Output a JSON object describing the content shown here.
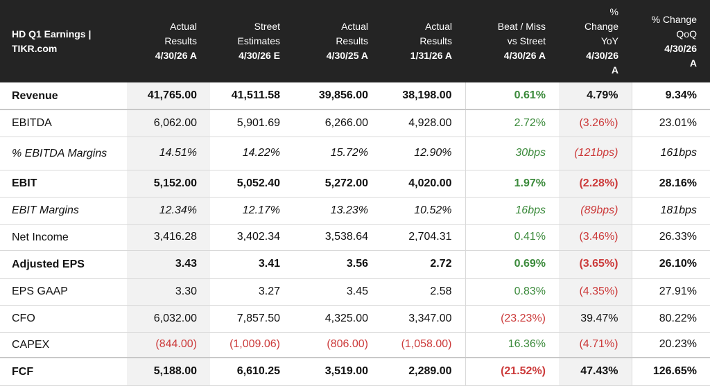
{
  "header": {
    "title_line1": "HD Q1 Earnings |",
    "title_line2": "TIKR.com",
    "columns": [
      {
        "lines": [
          "Actual",
          "Results"
        ],
        "date": "4/30/26 A"
      },
      {
        "lines": [
          "Street",
          "Estimates"
        ],
        "date": "4/30/26 E"
      },
      {
        "lines": [
          "Actual",
          "Results"
        ],
        "date": "4/30/25 A"
      },
      {
        "lines": [
          "Actual",
          "Results"
        ],
        "date": "1/31/26 A"
      },
      {
        "lines": [
          "Beat / Miss",
          "vs Street"
        ],
        "date": "4/30/26 A"
      },
      {
        "lines": [
          "%",
          "Change",
          "YoY"
        ],
        "date": "4/30/26",
        "date2": "A"
      },
      {
        "lines": [
          "% Change",
          "QoQ"
        ],
        "date": "4/30/26",
        "date2": "A"
      }
    ]
  },
  "rows": [
    {
      "label": "Revenue",
      "style": "bold",
      "values": [
        "41,765.00",
        "41,511.58",
        "39,856.00",
        "38,198.00",
        "0.61%",
        "4.79%",
        "9.34%"
      ],
      "tones": [
        "neu",
        "neu",
        "neu",
        "neu",
        "pos",
        "neu",
        "neu"
      ]
    },
    {
      "label": "EBITDA",
      "style": "normal",
      "values": [
        "6,062.00",
        "5,901.69",
        "6,266.00",
        "4,928.00",
        "2.72%",
        "(3.26%)",
        "23.01%"
      ],
      "tones": [
        "neu",
        "neu",
        "neu",
        "neu",
        "pos",
        "neg",
        "neu"
      ]
    },
    {
      "label": "% EBITDA Margins",
      "style": "ital",
      "values": [
        "14.51%",
        "14.22%",
        "15.72%",
        "12.90%",
        "30bps",
        "(121bps)",
        "161bps"
      ],
      "tones": [
        "neu",
        "neu",
        "neu",
        "neu",
        "pos",
        "neg",
        "neu"
      ]
    },
    {
      "label": "EBIT",
      "style": "bold",
      "values": [
        "5,152.00",
        "5,052.40",
        "5,272.00",
        "4,020.00",
        "1.97%",
        "(2.28%)",
        "28.16%"
      ],
      "tones": [
        "neu",
        "neu",
        "neu",
        "neu",
        "pos",
        "neg",
        "neu"
      ]
    },
    {
      "label": "EBIT Margins",
      "style": "ital",
      "values": [
        "12.34%",
        "12.17%",
        "13.23%",
        "10.52%",
        "16bps",
        "(89bps)",
        "181bps"
      ],
      "tones": [
        "neu",
        "neu",
        "neu",
        "neu",
        "pos",
        "neg",
        "neu"
      ]
    },
    {
      "label": "Net Income",
      "style": "normal",
      "values": [
        "3,416.28",
        "3,402.34",
        "3,538.64",
        "2,704.31",
        "0.41%",
        "(3.46%)",
        "26.33%"
      ],
      "tones": [
        "neu",
        "neu",
        "neu",
        "neu",
        "pos",
        "neg",
        "neu"
      ]
    },
    {
      "label": "Adjusted EPS",
      "style": "bold",
      "values": [
        "3.43",
        "3.41",
        "3.56",
        "2.72",
        "0.69%",
        "(3.65%)",
        "26.10%"
      ],
      "tones": [
        "neu",
        "neu",
        "neu",
        "neu",
        "pos",
        "neg",
        "neu"
      ]
    },
    {
      "label": "EPS GAAP",
      "style": "normal",
      "values": [
        "3.30",
        "3.27",
        "3.45",
        "2.58",
        "0.83%",
        "(4.35%)",
        "27.91%"
      ],
      "tones": [
        "neu",
        "neu",
        "neu",
        "neu",
        "pos",
        "neg",
        "neu"
      ]
    },
    {
      "label": "CFO",
      "style": "normal",
      "values": [
        "6,032.00",
        "7,857.50",
        "4,325.00",
        "3,347.00",
        "(23.23%)",
        "39.47%",
        "80.22%"
      ],
      "tones": [
        "neu",
        "neu",
        "neu",
        "neu",
        "neg",
        "neu",
        "neu"
      ]
    },
    {
      "label": "CAPEX",
      "style": "normal",
      "values": [
        "(844.00)",
        "(1,009.06)",
        "(806.00)",
        "(1,058.00)",
        "16.36%",
        "(4.71%)",
        "20.23%"
      ],
      "tones": [
        "neg",
        "neg",
        "neg",
        "neg",
        "pos",
        "neg",
        "neu"
      ]
    },
    {
      "label": "FCF",
      "style": "bold",
      "values": [
        "5,188.00",
        "6,610.25",
        "3,519.00",
        "2,289.00",
        "(21.52%)",
        "47.43%",
        "126.65%"
      ],
      "tones": [
        "neu",
        "neu",
        "neu",
        "neu",
        "neg",
        "neu",
        "neu"
      ]
    }
  ],
  "colors": {
    "header_bg": "#242424",
    "positive": "#3b8a3b",
    "negative": "#cc3a3a",
    "shaded": "#f2f2f2"
  }
}
